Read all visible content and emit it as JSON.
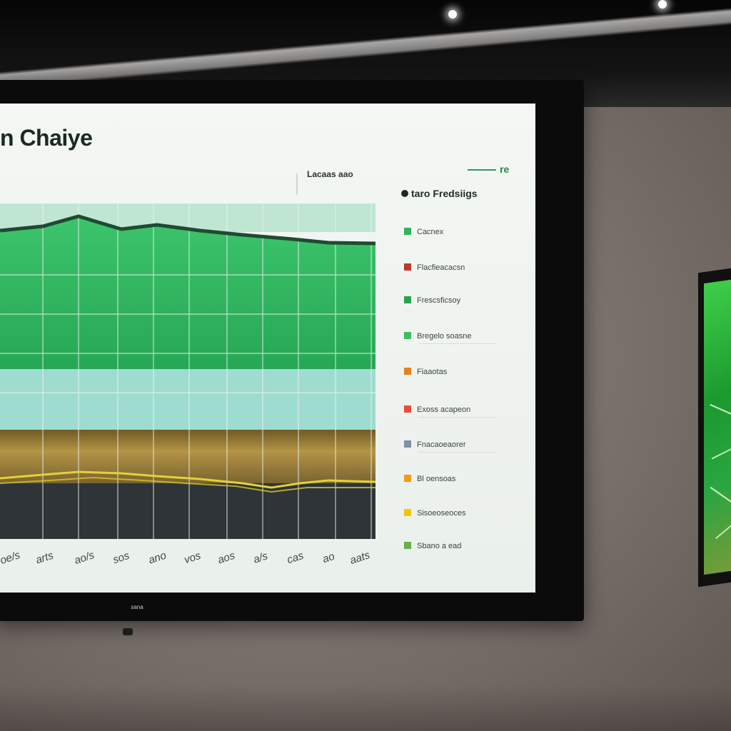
{
  "screen": {
    "title": "n Chaiye",
    "chart_label": "Lacaas aao",
    "corner_badge": "re",
    "brand_text": "sana"
  },
  "legend": {
    "title": "taro Fredsiigs",
    "items": [
      {
        "label": "Cacnex",
        "color": "#2fb35c"
      },
      {
        "label": "Flacfieacacsn",
        "color": "#c0392b"
      },
      {
        "label": "Frescsficsoy",
        "color": "#27a352"
      },
      {
        "label": "Bregelo soasne",
        "color": "#3bbf60"
      },
      {
        "label": "Fiaaotas",
        "color": "#e67e22"
      },
      {
        "label": "Exoss acapeon",
        "color": "#e74c3c"
      },
      {
        "label": "Fnacaoeaorer",
        "color": "#7f8fa6"
      },
      {
        "label": "Bl oensoas",
        "color": "#f39c12"
      },
      {
        "label": "Sisoeoseoces",
        "color": "#f1c40f"
      },
      {
        "label": "Sbano a ead",
        "color": "#6ab04c"
      }
    ]
  },
  "chart": {
    "x_ticks": [
      "oe/s",
      "arts",
      "ao/s",
      "sos",
      "ano",
      "vos",
      "aos",
      "a/s",
      "cas",
      "ao",
      "aats"
    ]
  },
  "colors": {
    "green_band": "#2fb35c",
    "teal_band": "#9fdcd0",
    "wheat_band": "#a88a3a",
    "dark_band": "#2f3438",
    "trend_line": "#1f4a32",
    "yellow_line": "#e3d23a"
  }
}
